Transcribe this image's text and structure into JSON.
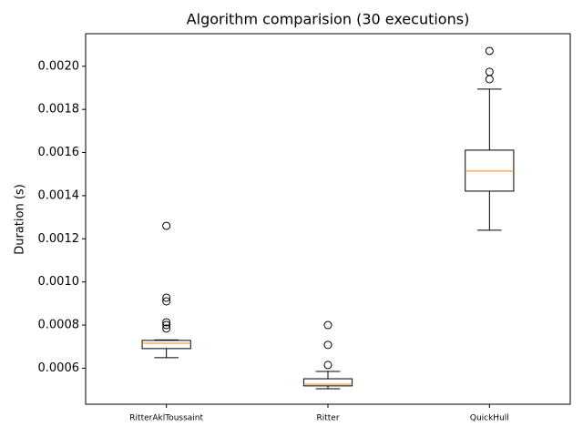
{
  "chart_data": {
    "type": "box",
    "title": "Algorithm comparision (30 executions)",
    "ylabel": "Duration (s)",
    "categories": [
      "RitterAklToussaint",
      "Ritter",
      "QuickHull"
    ],
    "boxes": [
      {
        "whisker_low": 0.000649,
        "q1": 0.000691,
        "median": 0.000716,
        "q3": 0.000729,
        "whisker_high": 0.000731,
        "fliers": [
          0.00126,
          0.000927,
          0.00091,
          0.000813,
          0.0008,
          0.000784
        ]
      },
      {
        "whisker_low": 0.000505,
        "q1": 0.000518,
        "median": 0.000526,
        "q3": 0.000551,
        "whisker_high": 0.000585,
        "fliers": [
          0.000615,
          0.000708,
          0.0008
        ]
      },
      {
        "whisker_low": 0.00124,
        "q1": 0.001421,
        "median": 0.001514,
        "q3": 0.001611,
        "whisker_high": 0.001894,
        "fliers": [
          0.00194,
          0.001974,
          0.002071
        ]
      }
    ],
    "box_color": "#000000",
    "median_color": "#ff7f0e",
    "ylim": [
      0.000433,
      0.002151
    ],
    "yticks": [
      0.0006,
      0.0008,
      {
        "value": 0.001,
        "label": "0.0010"
      },
      0.0012,
      0.0014,
      0.0016,
      0.0018,
      {
        "value": 0.002,
        "label": "0.0020"
      }
    ]
  }
}
